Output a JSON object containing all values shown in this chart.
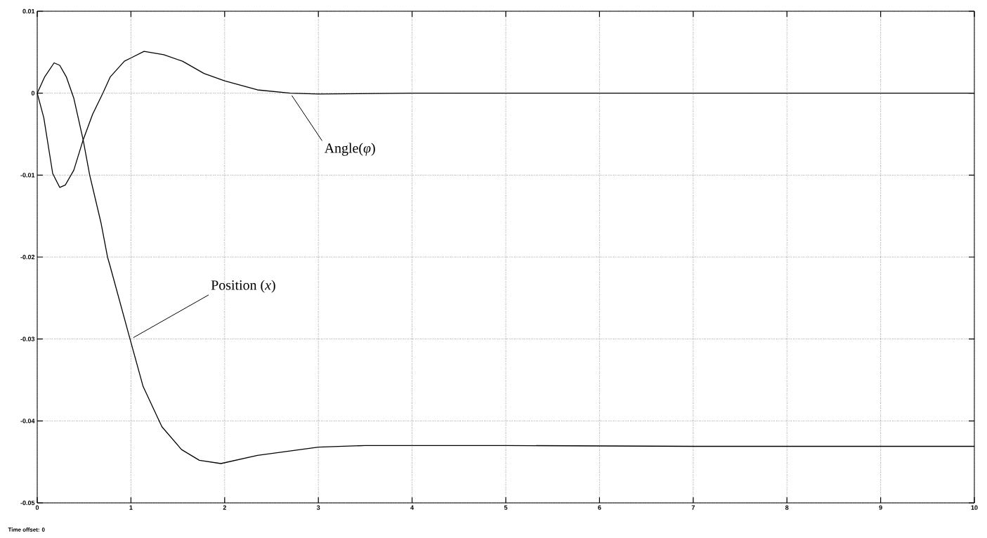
{
  "chart_data": {
    "type": "line",
    "series": [
      {
        "color": "#000000",
        "x": [
          0,
          0.08,
          0.18,
          0.24,
          0.31,
          0.39,
          0.49,
          0.56,
          0.68,
          0.75,
          0.78,
          0.99,
          1.13,
          1.33,
          1.54,
          1.73,
          1.96,
          2.35,
          3.0,
          3.5,
          5,
          7,
          10
        ],
        "values": [
          0,
          0.002,
          0.0037,
          0.0034,
          0.002,
          -0.0006,
          -0.0057,
          -0.01,
          -0.0158,
          -0.02,
          -0.0212,
          -0.03,
          -0.0358,
          -0.0407,
          -0.0435,
          -0.0448,
          -0.0452,
          -0.0442,
          -0.0432,
          -0.043,
          -0.043,
          -0.0431,
          -0.0431
        ]
      },
      {
        "color": "#000000",
        "x": [
          0,
          0.07,
          0.165,
          0.24,
          0.3,
          0.39,
          0.49,
          0.59,
          0.7,
          0.78,
          0.93,
          1.0,
          1.14,
          1.35,
          1.55,
          1.78,
          2.0,
          2.35,
          2.7,
          3.0,
          4,
          6,
          10
        ],
        "values": [
          0,
          -0.003,
          -0.0098,
          -0.0115,
          -0.0112,
          -0.0094,
          -0.0057,
          -0.0026,
          0,
          0.002,
          0.0039,
          0.0043,
          0.0051,
          0.0047,
          0.0039,
          0.0024,
          0.0015,
          0.0004,
          0,
          -0.0001,
          0,
          0,
          0
        ]
      }
    ],
    "xlim": [
      0,
      10
    ],
    "ylim": [
      -0.05,
      0.01
    ],
    "xticks": [
      0,
      1,
      2,
      3,
      4,
      5,
      6,
      7,
      8,
      9,
      10
    ],
    "yticks": [
      0.01,
      0,
      -0.01,
      -0.02,
      -0.03,
      -0.04,
      -0.05
    ],
    "grid": true,
    "annotations": [
      {
        "text": "Angle(*φ*)",
        "x": 2.7,
        "y": 0
      },
      {
        "text": "Position (*x*)",
        "x": 1.0,
        "y": -0.03
      },
      "Time offset:  0"
    ]
  }
}
